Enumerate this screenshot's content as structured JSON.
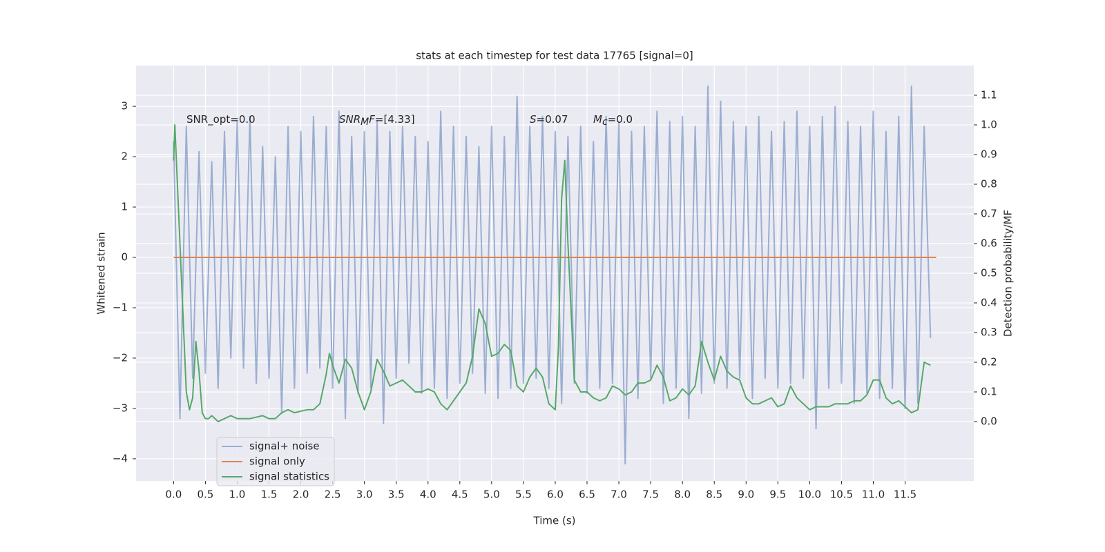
{
  "chart_data": {
    "type": "line",
    "title": "stats at each timestep for test data 17765 [signal=0]",
    "xlabel": "Time (s)",
    "ylabel": "Whitened strain",
    "y2label": "Detection probability/MF",
    "grid": true,
    "legend": "lower left",
    "xlim": [
      -0.59,
      12.58
    ],
    "ylim": [
      -4.44,
      3.81
    ],
    "y2lim": [
      -0.2,
      1.2
    ],
    "xticks": [
      {
        "value": 0,
        "label": "0.0"
      },
      0.5,
      {
        "value": 1,
        "label": "1.0"
      },
      1.5,
      {
        "value": 2,
        "label": "2.0"
      },
      2.5,
      {
        "value": 3,
        "label": "3.0"
      },
      3.5,
      {
        "value": 4,
        "label": "4.0"
      },
      4.5,
      {
        "value": 5,
        "label": "5.0"
      },
      5.5,
      {
        "value": 6,
        "label": "6.0"
      },
      6.5,
      {
        "value": 7,
        "label": "7.0"
      },
      7.5,
      {
        "value": 8,
        "label": "8.0"
      },
      8.5,
      {
        "value": 9,
        "label": "9.0"
      },
      9.5,
      {
        "value": 10,
        "label": "10.0"
      },
      10.5,
      {
        "value": 11,
        "label": "11.0"
      },
      11.5
    ],
    "yticks": [
      {
        "value": -4,
        "label": "−4"
      },
      {
        "value": -3,
        "label": "−3"
      },
      {
        "value": -2,
        "label": "−2"
      },
      {
        "value": -1,
        "label": "−1"
      },
      0,
      1,
      2,
      3
    ],
    "y2ticks": [
      {
        "value": 0,
        "label": "0.0"
      },
      0.1,
      0.2,
      0.3,
      0.4,
      0.5,
      0.6,
      0.7,
      0.8,
      0.9,
      {
        "value": 1,
        "label": "1.0"
      },
      1.1
    ],
    "annotations": [
      [
        {
          "text": "SNR_opt=0.0",
          "style": "normal"
        }
      ],
      [
        {
          "text": "SNR",
          "style": "italic"
        },
        {
          "text": "M",
          "style": "sub"
        },
        {
          "text": "F",
          "style": "italic"
        },
        {
          "text": "=[4.33]",
          "style": "normal"
        }
      ],
      [
        {
          "text": "S",
          "style": "italic"
        },
        {
          "text": "=0.07",
          "style": "normal"
        }
      ],
      [
        {
          "text": "M",
          "style": "italic"
        },
        {
          "text": "c",
          "style": "sub"
        },
        {
          "text": "=0.0",
          "style": "normal"
        }
      ]
    ],
    "series": [
      {
        "name": "signal+ noise",
        "color": "#4c72b0",
        "opacity": 0.5,
        "x": [
          0,
          0.1,
          0.2,
          0.3,
          0.4,
          0.5,
          0.6,
          0.7,
          0.8,
          0.9,
          1,
          1.1,
          1.2,
          1.3,
          1.4,
          1.5,
          1.6,
          1.7,
          1.8,
          1.9,
          2,
          2.1,
          2.2,
          2.3,
          2.4,
          2.5,
          2.6,
          2.7,
          2.8,
          2.9,
          3,
          3.1,
          3.2,
          3.3,
          3.4,
          3.5,
          3.6,
          3.7,
          3.8,
          3.9,
          4,
          4.1,
          4.2,
          4.3,
          4.4,
          4.5,
          4.6,
          4.7,
          4.8,
          4.9,
          5,
          5.1,
          5.2,
          5.3,
          5.4,
          5.5,
          5.6,
          5.7,
          5.8,
          5.9,
          6,
          6.1,
          6.2,
          6.3,
          6.4,
          6.5,
          6.6,
          6.7,
          6.8,
          6.9,
          7,
          7.1,
          7.2,
          7.3,
          7.4,
          7.5,
          7.6,
          7.7,
          7.8,
          7.9,
          8,
          8.1,
          8.2,
          8.3,
          8.4,
          8.5,
          8.6,
          8.7,
          8.8,
          8.9,
          9,
          9.1,
          9.2,
          9.3,
          9.4,
          9.5,
          9.6,
          9.7,
          9.8,
          9.9,
          10,
          10.1,
          10.2,
          10.3,
          10.4,
          10.5,
          10.6,
          10.7,
          10.8,
          10.9,
          11,
          11.1,
          11.2,
          11.3,
          11.4,
          11.5,
          11.6,
          11.7,
          11.8,
          11.9
        ],
        "values": [
          2.3,
          -3.2,
          2.6,
          -2.4,
          2.1,
          -2.3,
          1.9,
          -2.6,
          2.5,
          -2.0,
          2.7,
          -2.2,
          2.8,
          -2.5,
          2.2,
          -2.4,
          2.0,
          -3.1,
          2.6,
          -2.6,
          2.5,
          -2.3,
          2.8,
          -2.2,
          2.6,
          -2.6,
          2.9,
          -3.2,
          2.4,
          -2.7,
          2.5,
          -2.6,
          2.7,
          -3.3,
          2.5,
          -2.4,
          2.6,
          -2.1,
          2.4,
          -2.7,
          2.3,
          -2.6,
          2.9,
          -2.8,
          2.6,
          -2.5,
          2.4,
          -2.3,
          2.2,
          -2.7,
          2.6,
          -2.8,
          2.4,
          -2.6,
          3.2,
          -2.5,
          2.6,
          -2.4,
          2.8,
          -2.6,
          2.5,
          -2.9,
          2.4,
          -2.5,
          2.6,
          -2.7,
          2.3,
          -2.6,
          2.8,
          -2.5,
          2.7,
          -4.1,
          2.5,
          -2.8,
          2.6,
          -2.4,
          2.9,
          -2.9,
          2.7,
          -2.6,
          2.8,
          -3.2,
          2.6,
          -2.7,
          3.4,
          -2.5,
          3.1,
          -2.6,
          2.7,
          -2.4,
          2.6,
          -2.8,
          2.8,
          -2.4,
          2.5,
          -2.6,
          2.7,
          -2.5,
          2.9,
          -2.4,
          2.6,
          -3.4,
          2.8,
          -2.6,
          3.0,
          -2.5,
          2.7,
          -2.9,
          2.6,
          -2.7,
          2.9,
          -2.8,
          2.5,
          -2.6,
          2.8,
          -3.0,
          3.4,
          -2.9,
          2.6,
          -1.6
        ]
      },
      {
        "name": "signal only",
        "color": "#dd8452",
        "opacity": 1,
        "x": [
          0,
          11.99
        ],
        "values": [
          0,
          0
        ]
      },
      {
        "name": "signal statistics",
        "color": "#55a868",
        "opacity": 1,
        "axis": "y2",
        "x": [
          0,
          0.02,
          0.1,
          0.2,
          0.25,
          0.3,
          0.35,
          0.4,
          0.45,
          0.5,
          0.55,
          0.6,
          0.7,
          0.8,
          0.9,
          1.0,
          1.1,
          1.2,
          1.3,
          1.4,
          1.5,
          1.6,
          1.7,
          1.8,
          1.9,
          2.0,
          2.1,
          2.2,
          2.3,
          2.4,
          2.45,
          2.5,
          2.6,
          2.7,
          2.8,
          2.9,
          3.0,
          3.1,
          3.2,
          3.3,
          3.4,
          3.5,
          3.6,
          3.7,
          3.8,
          3.9,
          4.0,
          4.1,
          4.2,
          4.3,
          4.4,
          4.5,
          4.6,
          4.7,
          4.8,
          4.9,
          5.0,
          5.1,
          5.2,
          5.3,
          5.4,
          5.5,
          5.6,
          5.7,
          5.8,
          5.9,
          6.0,
          6.05,
          6.1,
          6.15,
          6.2,
          6.3,
          6.4,
          6.5,
          6.6,
          6.7,
          6.8,
          6.9,
          7.0,
          7.1,
          7.2,
          7.3,
          7.4,
          7.5,
          7.6,
          7.7,
          7.8,
          7.9,
          8.0,
          8.1,
          8.2,
          8.3,
          8.4,
          8.5,
          8.6,
          8.7,
          8.8,
          8.9,
          9.0,
          9.1,
          9.2,
          9.3,
          9.4,
          9.5,
          9.6,
          9.7,
          9.8,
          9.9,
          10.0,
          10.1,
          10.2,
          10.3,
          10.4,
          10.5,
          10.6,
          10.7,
          10.8,
          10.9,
          11.0,
          11.1,
          11.2,
          11.3,
          11.4,
          11.5,
          11.6,
          11.7,
          11.8,
          11.9
        ],
        "values": [
          0.88,
          1.0,
          0.6,
          0.1,
          0.04,
          0.08,
          0.27,
          0.17,
          0.03,
          0.01,
          0.01,
          0.02,
          0.0,
          0.01,
          0.02,
          0.01,
          0.01,
          0.01,
          0.015,
          0.02,
          0.01,
          0.01,
          0.03,
          0.04,
          0.03,
          0.035,
          0.04,
          0.04,
          0.06,
          0.16,
          0.23,
          0.19,
          0.13,
          0.21,
          0.18,
          0.1,
          0.04,
          0.1,
          0.21,
          0.17,
          0.12,
          0.13,
          0.14,
          0.12,
          0.1,
          0.1,
          0.11,
          0.1,
          0.06,
          0.04,
          0.07,
          0.1,
          0.13,
          0.22,
          0.38,
          0.33,
          0.22,
          0.23,
          0.26,
          0.24,
          0.12,
          0.1,
          0.15,
          0.18,
          0.15,
          0.06,
          0.04,
          0.25,
          0.75,
          0.88,
          0.6,
          0.14,
          0.1,
          0.1,
          0.08,
          0.07,
          0.08,
          0.12,
          0.11,
          0.09,
          0.1,
          0.13,
          0.13,
          0.14,
          0.19,
          0.15,
          0.07,
          0.08,
          0.11,
          0.09,
          0.12,
          0.27,
          0.2,
          0.14,
          0.22,
          0.17,
          0.15,
          0.14,
          0.08,
          0.06,
          0.06,
          0.07,
          0.08,
          0.05,
          0.06,
          0.12,
          0.08,
          0.06,
          0.04,
          0.05,
          0.05,
          0.05,
          0.06,
          0.06,
          0.06,
          0.07,
          0.07,
          0.09,
          0.14,
          0.14,
          0.08,
          0.06,
          0.07,
          0.05,
          0.03,
          0.04,
          0.2,
          0.19
        ]
      }
    ]
  }
}
